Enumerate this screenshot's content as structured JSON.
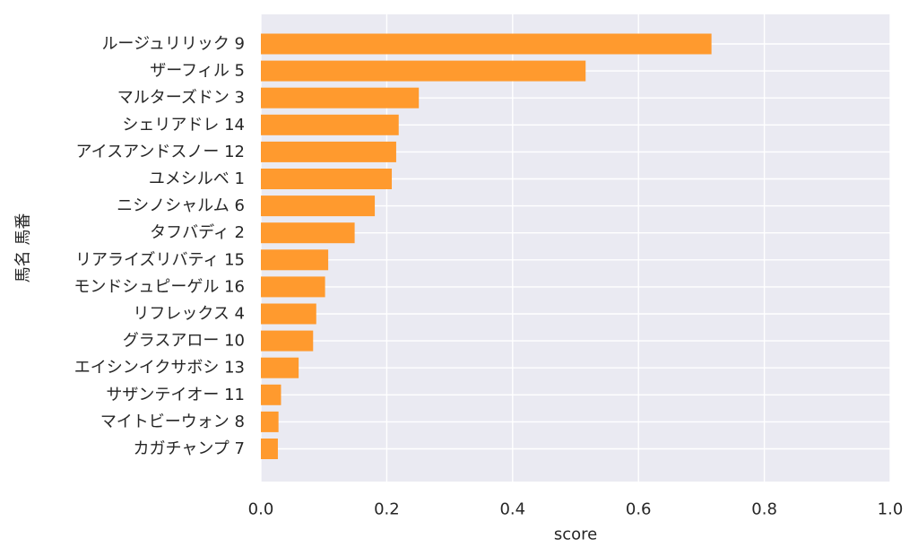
{
  "chart_data": {
    "type": "bar",
    "orientation": "horizontal",
    "categories": [
      "ルージュリリック 9",
      "ザーフィル 5",
      "マルターズドン 3",
      "シェリアドレ 14",
      "アイスアンドスノー 12",
      "ユメシルベ 1",
      "ニシノシャルム 6",
      "タフバディ 2",
      "リアライズリバティ 15",
      "モンドシュピーゲル 16",
      "リフレックス 4",
      "グラスアロー 10",
      "エイシンイクサボシ 13",
      "サザンテイオー 11",
      "マイトビーウォン 8",
      "カガチャンプ 7"
    ],
    "values": [
      0.716,
      0.516,
      0.251,
      0.219,
      0.215,
      0.208,
      0.181,
      0.149,
      0.107,
      0.102,
      0.088,
      0.083,
      0.06,
      0.032,
      0.028,
      0.027
    ],
    "xlabel": "score",
    "ylabel": "馬名 馬番",
    "xlim": [
      0,
      1.0
    ],
    "xticks": [
      "0.0",
      "0.2",
      "0.4",
      "0.6",
      "0.8",
      "1.0"
    ],
    "xtick_values": [
      0,
      0.2,
      0.4,
      0.6,
      0.8,
      1.0
    ],
    "grid": true,
    "colors": {
      "bar": "#ff9a2e",
      "plot_background": "#eaeaf2",
      "grid": "#ffffff",
      "text": "#262626"
    }
  }
}
